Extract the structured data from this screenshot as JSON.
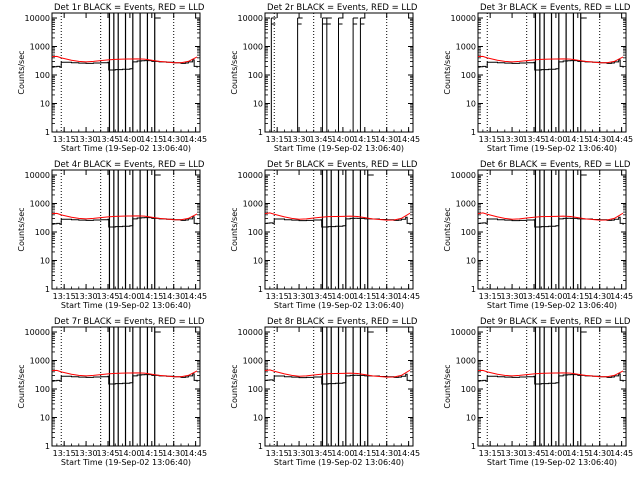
{
  "chart_data": {
    "type": "line",
    "layout": "3x3 grid",
    "panels": [
      {
        "title": "Det 1r  BLACK = Events, RED = LLD",
        "variant": "a"
      },
      {
        "title": "Det 2r  BLACK = Events, RED = LLD",
        "variant": "empty"
      },
      {
        "title": "Det 3r  BLACK = Events, RED = LLD",
        "variant": "a"
      },
      {
        "title": "Det 4r  BLACK = Events, RED = LLD",
        "variant": "a"
      },
      {
        "title": "Det 5r  BLACK = Events, RED = LLD",
        "variant": "b"
      },
      {
        "title": "Det 6r  BLACK = Events, RED = LLD",
        "variant": "b"
      },
      {
        "title": "Det 7r  BLACK = Events, RED = LLD",
        "variant": "a"
      },
      {
        "title": "Det 8r  BLACK = Events, RED = LLD",
        "variant": "b"
      },
      {
        "title": "Det 9r  BLACK = Events, RED = LLD",
        "variant": "a"
      }
    ],
    "ylabel": "Counts/sec",
    "xlabel": "Start Time (19-Sep-02 13:06:40)",
    "y_scale": "log",
    "ylim": [
      1,
      15000
    ],
    "y_ticks": [
      1,
      10,
      100,
      1000,
      10000
    ],
    "y_tick_labels": [
      "1",
      "10",
      "100",
      "1000",
      "10000"
    ],
    "xlim": [
      "13:06:40",
      "14:48:00"
    ],
    "x_ticks": [
      "13:15",
      "13:30",
      "13:45",
      "14:00",
      "14:15",
      "14:30",
      "14:45"
    ],
    "dotted_vertical_lines": [
      "13:13",
      "13:40",
      "14:30"
    ],
    "solid_vertical_lines": [
      "13:46",
      "13:49",
      "13:52",
      "13:57",
      "14:02",
      "14:07",
      "14:12",
      "14:17"
    ],
    "series_colors": {
      "events": "#000000",
      "lld": "#ff0000"
    },
    "series": {
      "events": {
        "variant_a": {
          "x": [
            "13:06:40",
            "13:08",
            "13:10",
            "13:12",
            "13:13",
            "13:20",
            "13:25",
            "13:30",
            "13:35",
            "13:40",
            "13:45",
            "13:45:30",
            "13:50",
            "13:55",
            "14:00",
            "14:02",
            "14:05",
            "14:08",
            "14:10",
            "14:15",
            "14:20",
            "14:25",
            "14:30",
            "14:35",
            "14:38",
            "14:40",
            "14:43",
            "14:44",
            "14:46"
          ],
          "y": [
            190,
            195,
            200,
            190,
            280,
            270,
            260,
            255,
            265,
            270,
            280,
            150,
            155,
            160,
            165,
            290,
            310,
            315,
            320,
            300,
            290,
            280,
            270,
            255,
            265,
            290,
            340,
            200,
            180
          ]
        },
        "variant_b": {
          "x": [
            "13:06:40",
            "13:08",
            "13:10",
            "13:12",
            "13:13",
            "13:20",
            "13:25",
            "13:30",
            "13:35",
            "13:40",
            "13:45",
            "13:45:30",
            "13:50",
            "13:55",
            "14:00",
            "14:02",
            "14:05",
            "14:08",
            "14:10",
            "14:15",
            "14:20",
            "14:25",
            "14:30",
            "14:35",
            "14:38",
            "14:40",
            "14:43",
            "14:44",
            "14:46"
          ],
          "y": [
            200,
            205,
            210,
            200,
            285,
            270,
            260,
            250,
            255,
            265,
            270,
            150,
            155,
            160,
            165,
            290,
            300,
            305,
            300,
            290,
            285,
            275,
            270,
            255,
            260,
            280,
            330,
            200,
            180
          ]
        }
      },
      "lld": {
        "variant_a": {
          "x": [
            "13:06:40",
            "13:10",
            "13:13",
            "13:20",
            "13:25",
            "13:30",
            "13:35",
            "13:40",
            "13:45",
            "13:50",
            "13:55",
            "14:00",
            "14:05",
            "14:10",
            "14:15",
            "14:20",
            "14:25",
            "14:30",
            "14:35",
            "14:40",
            "14:43",
            "14:46"
          ],
          "y": [
            440,
            450,
            400,
            330,
            300,
            290,
            300,
            320,
            340,
            355,
            360,
            365,
            370,
            360,
            330,
            300,
            285,
            270,
            270,
            300,
            360,
            430
          ]
        },
        "variant_b": {
          "x": [
            "13:06:40",
            "13:10",
            "13:13",
            "13:20",
            "13:25",
            "13:30",
            "13:35",
            "13:40",
            "13:45",
            "13:50",
            "13:55",
            "14:00",
            "14:05",
            "14:10",
            "14:15",
            "14:20",
            "14:25",
            "14:30",
            "14:35",
            "14:40",
            "14:43",
            "14:46"
          ],
          "y": [
            440,
            470,
            420,
            340,
            300,
            280,
            290,
            310,
            330,
            345,
            350,
            355,
            360,
            350,
            320,
            290,
            275,
            260,
            265,
            300,
            370,
            460
          ]
        }
      }
    },
    "empty_variant_markers": {
      "x": [
        "13:11",
        "13:29",
        "13:46",
        "13:49",
        "13:57",
        "14:07"
      ],
      "x_tall": [
        "14:12"
      ]
    }
  }
}
